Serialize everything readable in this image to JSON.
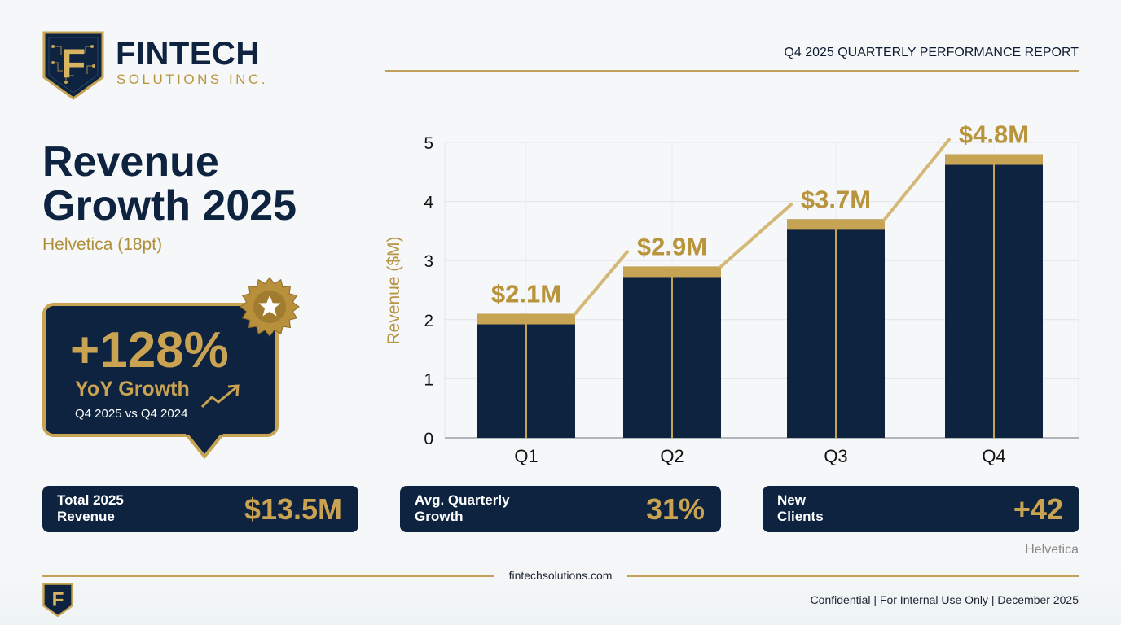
{
  "brand": {
    "name": "FINTECH",
    "tagline": "SOLUTIONS INC.",
    "monogram": "F"
  },
  "header": {
    "report_title": "Q4 2025 QUARTERLY PERFORMANCE REPORT"
  },
  "headline": {
    "line1": "Revenue",
    "line2": "Growth 2025",
    "subtitle": "Helvetica (18pt)"
  },
  "growth_badge": {
    "value": "+128%",
    "label": "YoY Growth",
    "comparison": "Q4 2025 vs Q4 2024",
    "icons": [
      "trend-up-icon",
      "star-seal-icon"
    ]
  },
  "chart_data": {
    "type": "bar",
    "categories": [
      "Q1",
      "Q2",
      "Q3",
      "Q4"
    ],
    "values": [
      2.1,
      2.9,
      3.7,
      4.8
    ],
    "data_labels": [
      "$2.1M",
      "$2.9M",
      "$3.7M",
      "$4.8M"
    ],
    "ylabel": "Revenue ($M)",
    "xlabel": "",
    "ylim": [
      0,
      5
    ],
    "yticks": [
      0,
      1,
      2,
      3,
      4,
      5
    ],
    "grid": true,
    "trend_line": true
  },
  "stats": [
    {
      "label_line1": "Total 2025",
      "label_line2": "Revenue",
      "value": "$13.5M"
    },
    {
      "label_line1": "Avg. Quarterly",
      "label_line2": "Growth",
      "value": "31%"
    },
    {
      "label_line1": "New",
      "label_line2": "Clients",
      "value": "+42"
    }
  ],
  "font_note": "Helvetica",
  "footer": {
    "url": "fintechsolutions.com",
    "notice": "Confidential  |  For Internal Use Only  |  December 2025"
  },
  "colors": {
    "navy": "#0d2340",
    "gold": "#c9a352",
    "gold_light": "#d9b562",
    "text_dark": "#1b2433"
  }
}
